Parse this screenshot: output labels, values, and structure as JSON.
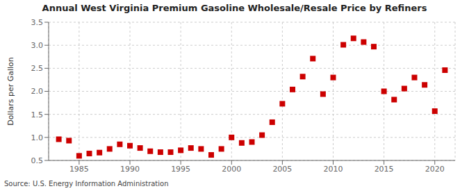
{
  "chart_data": {
    "type": "scatter",
    "title": "Annual West Virginia Premium Gasoline Wholesale/Resale Price by Refiners",
    "y_label": "Dollars per Gallon",
    "annotations": [
      "Source: U.S. Energy Information Administration"
    ],
    "x": [
      1983,
      1984,
      1985,
      1986,
      1987,
      1988,
      1989,
      1990,
      1991,
      1992,
      1993,
      1994,
      1995,
      1996,
      1997,
      1998,
      1999,
      2000,
      2001,
      2002,
      2003,
      2004,
      2005,
      2006,
      2007,
      2008,
      2009,
      2010,
      2011,
      2012,
      2013,
      2014,
      2015,
      2016,
      2017,
      2018,
      2019,
      2020,
      2021
    ],
    "values": [
      0.96,
      0.93,
      0.6,
      0.65,
      0.67,
      0.75,
      0.85,
      0.82,
      0.77,
      0.7,
      0.68,
      0.68,
      0.72,
      0.77,
      0.75,
      0.62,
      0.75,
      1.0,
      0.88,
      0.9,
      1.05,
      1.33,
      1.73,
      2.04,
      2.32,
      2.71,
      1.94,
      2.3,
      3.01,
      3.15,
      3.07,
      2.97,
      2.0,
      1.82,
      2.06,
      2.3,
      2.14,
      1.57,
      2.46
    ],
    "color": "#cc0000",
    "marker": "square",
    "xlim": [
      1982,
      2022
    ],
    "xticks": [
      1985,
      1990,
      1995,
      2000,
      2005,
      2010,
      2015,
      2020
    ],
    "ylim": [
      0.5,
      3.5
    ],
    "yticks": [
      0.5,
      {
        "value": 1.0,
        "label": "1.0"
      },
      1.5,
      {
        "value": 2.0,
        "label": "2.0"
      },
      2.5,
      {
        "value": 3.0,
        "label": "3.0"
      },
      3.5
    ],
    "grid": true
  }
}
